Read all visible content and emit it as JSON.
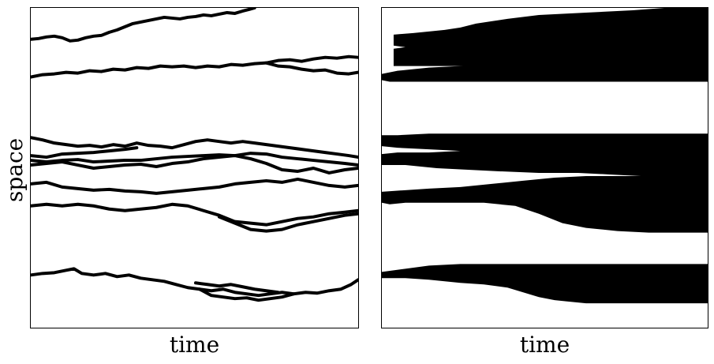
{
  "labels": {
    "left_xlabel": "time",
    "right_xlabel": "time",
    "ylabel": "space"
  },
  "colors": {
    "ink": "#000000",
    "background": "#ffffff"
  }
}
